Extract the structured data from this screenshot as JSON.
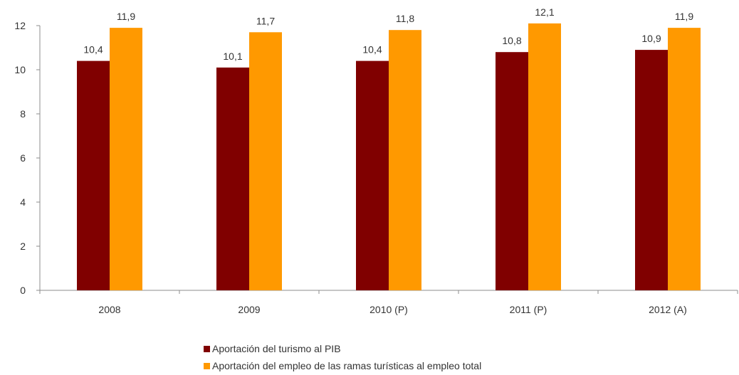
{
  "chart_data": {
    "type": "bar",
    "categories": [
      "2008",
      "2009",
      "2010 (P)",
      "2011 (P)",
      "2012 (A)"
    ],
    "series": [
      {
        "name": "Aportación del turismo al PIB",
        "values": [
          10.4,
          10.1,
          10.4,
          10.8,
          10.9
        ],
        "labels": [
          "10,4",
          "10,1",
          "10,4",
          "10,8",
          "10,9"
        ],
        "color": "#800000"
      },
      {
        "name": "Aportación del empleo de las ramas turísticas al empleo total",
        "values": [
          11.9,
          11.7,
          11.8,
          12.1,
          11.9
        ],
        "labels": [
          "11,9",
          "11,7",
          "11,8",
          "12,1",
          "11,9"
        ],
        "color": "#FF9900"
      }
    ],
    "ylim": [
      0,
      12
    ],
    "yticks": [
      "0",
      "2",
      "4",
      "6",
      "8",
      "10",
      "12"
    ],
    "title": "",
    "xlabel": "",
    "ylabel": "",
    "grid": false,
    "legend_position": "bottom"
  }
}
